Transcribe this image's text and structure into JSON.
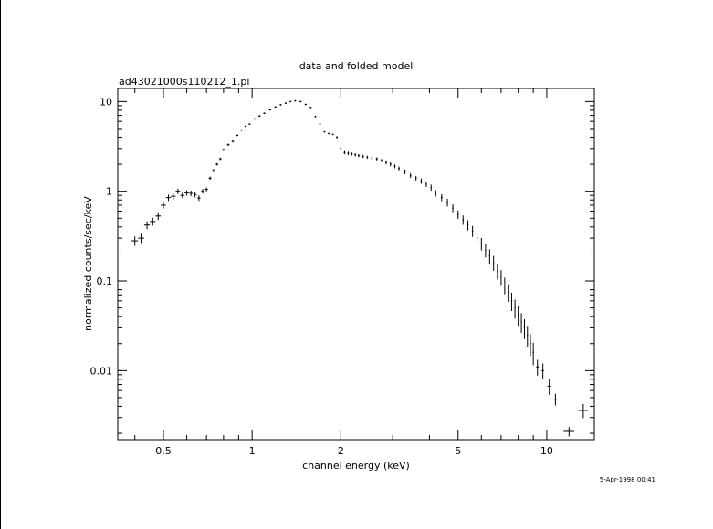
{
  "chart_data": {
    "type": "scatter",
    "title": "data and folded model",
    "subtitle": "ad43021000s110212_1.pi",
    "xlabel": "channel energy (keV)",
    "ylabel": "normalized counts/sec/keV",
    "xscale": "log",
    "yscale": "log",
    "xlim": [
      0.35,
      14.5
    ],
    "ylim": [
      0.0017,
      14
    ],
    "x_ticks": [
      0.5,
      1,
      2,
      5,
      10
    ],
    "x_tick_labels": [
      "0.5",
      "1",
      "2",
      "5",
      "10"
    ],
    "y_ticks": [
      0.01,
      0.1,
      1,
      10
    ],
    "y_tick_labels": [
      "0.01",
      "0.1",
      "1",
      "10"
    ],
    "timestamp": "5-Apr-1998 00:41",
    "grid": false,
    "legend": "none",
    "color": "#000000",
    "series": [
      {
        "x": [
          0.4,
          0.42,
          0.44,
          0.46,
          0.48,
          0.5,
          0.52,
          0.54,
          0.56,
          0.58,
          0.6,
          0.62,
          0.64,
          0.66,
          0.68,
          0.7,
          0.72,
          0.74,
          0.76,
          0.78,
          0.8,
          0.83,
          0.86,
          0.89,
          0.92,
          0.95,
          0.98,
          1.02,
          1.06,
          1.1,
          1.15,
          1.2,
          1.25,
          1.3,
          1.35,
          1.4,
          1.46,
          1.52,
          1.58,
          1.64,
          1.7,
          1.76,
          1.82,
          1.88,
          1.94,
          2.0,
          2.06,
          2.12,
          2.18,
          2.24,
          2.3,
          2.38,
          2.46,
          2.55,
          2.65,
          2.75,
          2.85,
          2.95,
          3.05,
          3.15,
          3.3,
          3.45,
          3.6,
          3.75,
          3.9,
          4.05,
          4.2,
          4.4,
          4.6,
          4.8,
          5.0,
          5.2,
          5.4,
          5.6,
          5.8,
          6.0,
          6.2,
          6.4,
          6.6,
          6.8,
          7.0,
          7.2,
          7.4,
          7.6,
          7.8,
          8.0,
          8.2,
          8.4,
          8.6,
          8.8,
          9.0,
          9.3,
          9.7,
          10.2,
          10.7,
          11.9,
          13.3
        ],
        "y": [
          0.28,
          0.3,
          0.42,
          0.46,
          0.53,
          0.7,
          0.85,
          0.88,
          1.0,
          0.9,
          0.96,
          0.95,
          0.92,
          0.84,
          1.0,
          1.05,
          1.4,
          1.7,
          2.0,
          2.3,
          2.9,
          3.3,
          3.6,
          4.2,
          4.8,
          5.3,
          5.6,
          6.4,
          6.9,
          7.4,
          8.1,
          8.7,
          9.2,
          9.6,
          10.0,
          10.2,
          10.0,
          9.3,
          8.6,
          6.8,
          5.6,
          4.6,
          4.4,
          4.3,
          4.0,
          3.0,
          2.7,
          2.65,
          2.6,
          2.55,
          2.5,
          2.45,
          2.4,
          2.35,
          2.3,
          2.2,
          2.1,
          2.0,
          1.9,
          1.8,
          1.65,
          1.5,
          1.4,
          1.3,
          1.2,
          1.1,
          0.95,
          0.85,
          0.75,
          0.65,
          0.55,
          0.48,
          0.42,
          0.36,
          0.3,
          0.26,
          0.22,
          0.19,
          0.16,
          0.13,
          0.11,
          0.09,
          0.075,
          0.06,
          0.05,
          0.042,
          0.035,
          0.03,
          0.025,
          0.02,
          0.016,
          0.011,
          0.01,
          0.0067,
          0.0048,
          0.0021,
          0.0036
        ],
        "xerr": [
          0.01,
          0.01,
          0.01,
          0.01,
          0.01,
          0.01,
          0.01,
          0.01,
          0.01,
          0.01,
          0.01,
          0.008,
          0.008,
          0.008,
          0.008,
          0.008,
          0.008,
          0.008,
          0.008,
          0.008,
          0.008,
          0.008,
          0.008,
          0.008,
          0.008,
          0.008,
          0.008,
          0.01,
          0.01,
          0.01,
          0.01,
          0.01,
          0.01,
          0.01,
          0.01,
          0.01,
          0.012,
          0.012,
          0.012,
          0.012,
          0.012,
          0.012,
          0.012,
          0.012,
          0.012,
          0.012,
          0.015,
          0.015,
          0.015,
          0.015,
          0.015,
          0.015,
          0.015,
          0.015,
          0.02,
          0.02,
          0.02,
          0.02,
          0.02,
          0.02,
          0.02,
          0.02,
          0.02,
          0.02,
          0.02,
          0.02,
          0.02,
          0.03,
          0.03,
          0.03,
          0.03,
          0.03,
          0.03,
          0.03,
          0.03,
          0.03,
          0.03,
          0.03,
          0.03,
          0.03,
          0.03,
          0.04,
          0.04,
          0.04,
          0.04,
          0.04,
          0.04,
          0.04,
          0.04,
          0.05,
          0.05,
          0.1,
          0.1,
          0.15,
          0.15,
          0.5,
          0.5
        ],
        "yerr_frac": [
          0.12,
          0.12,
          0.1,
          0.1,
          0.1,
          0.08,
          0.08,
          0.08,
          0.07,
          0.07,
          0.07,
          0.07,
          0.07,
          0.07,
          0.06,
          0.05,
          0.04,
          0.04,
          0.03,
          0.03,
          0.03,
          0.03,
          0.03,
          0.02,
          0.02,
          0.02,
          0.02,
          0.02,
          0.02,
          0.02,
          0.02,
          0.02,
          0.02,
          0.02,
          0.02,
          0.02,
          0.02,
          0.02,
          0.02,
          0.02,
          0.02,
          0.02,
          0.02,
          0.02,
          0.03,
          0.03,
          0.04,
          0.04,
          0.04,
          0.04,
          0.04,
          0.04,
          0.04,
          0.04,
          0.04,
          0.04,
          0.05,
          0.05,
          0.05,
          0.05,
          0.06,
          0.06,
          0.06,
          0.07,
          0.07,
          0.08,
          0.08,
          0.09,
          0.1,
          0.1,
          0.11,
          0.12,
          0.13,
          0.14,
          0.15,
          0.16,
          0.17,
          0.18,
          0.19,
          0.2,
          0.2,
          0.21,
          0.22,
          0.23,
          0.24,
          0.25,
          0.25,
          0.25,
          0.26,
          0.27,
          0.28,
          0.2,
          0.2,
          0.2,
          0.15,
          0.12,
          0.18
        ]
      }
    ]
  }
}
